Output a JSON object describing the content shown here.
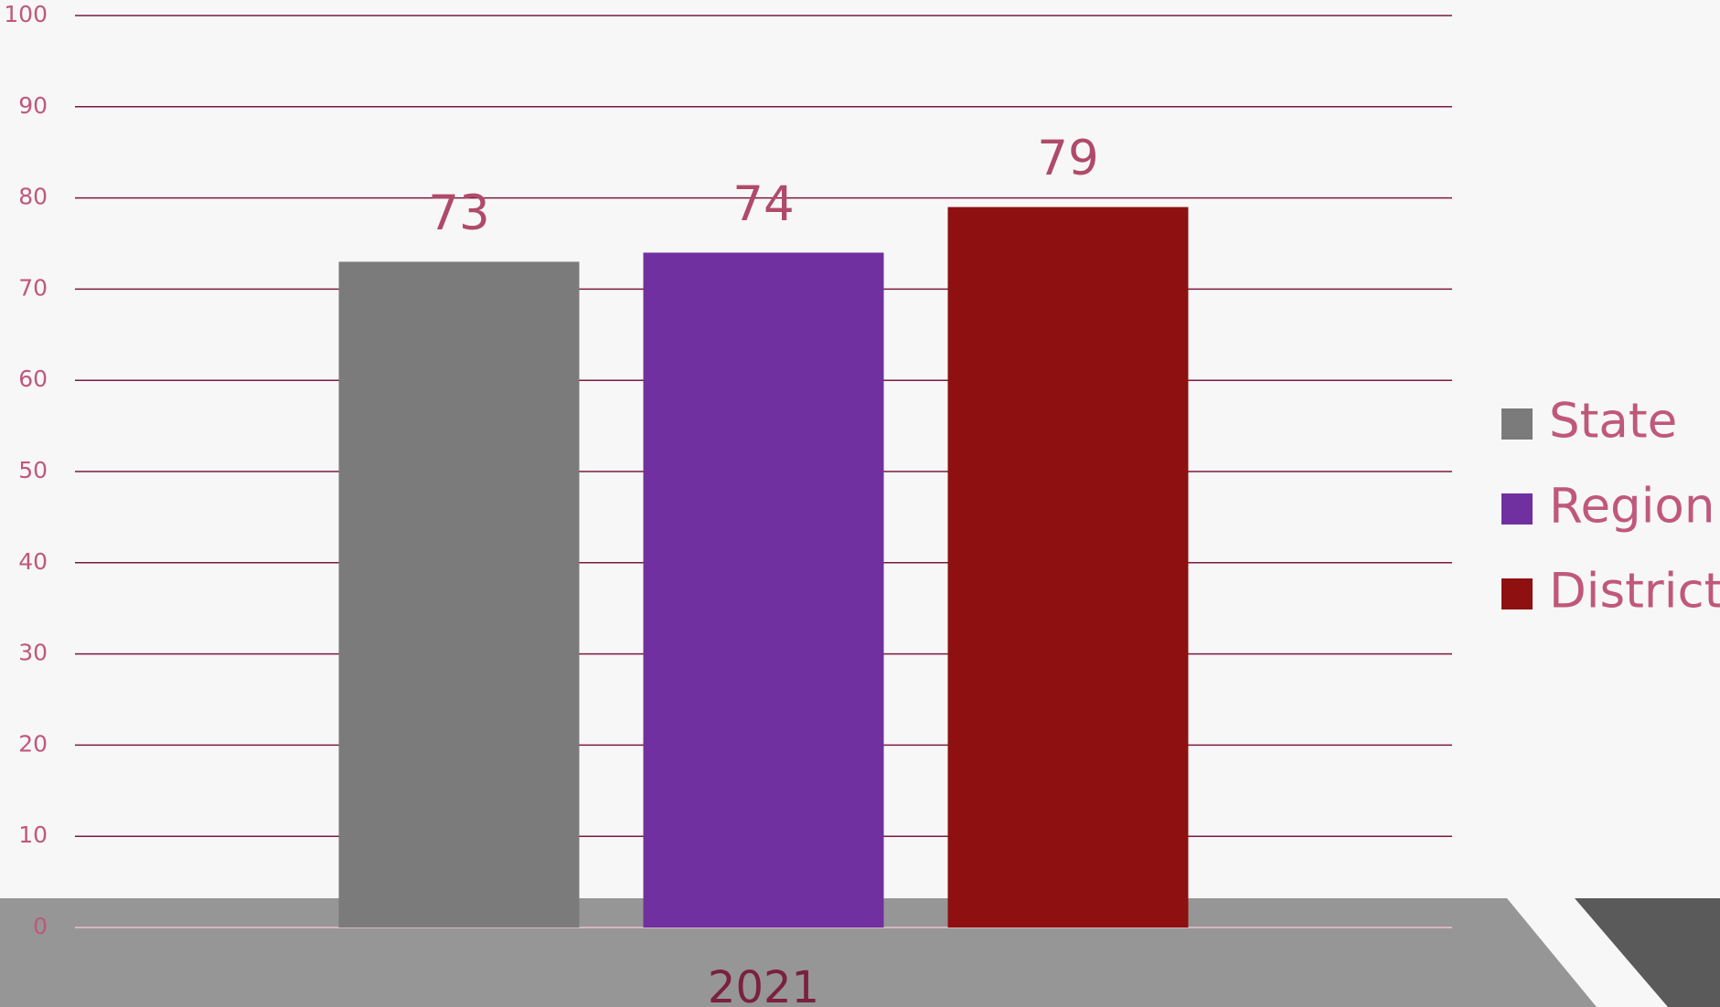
{
  "chart_data": {
    "type": "bar",
    "categories": [
      "2021"
    ],
    "series": [
      {
        "name": "State",
        "color": "#7b7b7b",
        "values": [
          73
        ]
      },
      {
        "name": "Region",
        "color": "#7030a0",
        "values": [
          74
        ]
      },
      {
        "name": "District",
        "color": "#8e1010",
        "values": [
          79
        ]
      }
    ],
    "ylim": [
      0,
      100
    ],
    "yticks": [
      0,
      10,
      20,
      30,
      40,
      50,
      60,
      70,
      80,
      90,
      100
    ],
    "grid": true,
    "legend": "right"
  }
}
